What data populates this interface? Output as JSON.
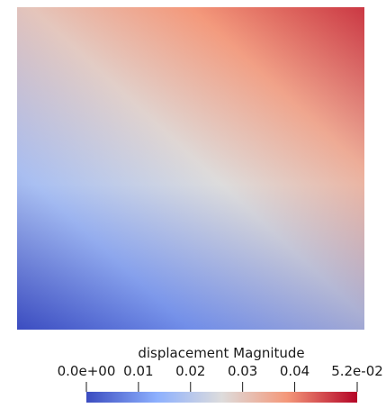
{
  "chart_data": {
    "type": "heatmap",
    "field": "displacement Magnitude",
    "range": [
      0.0,
      0.052
    ],
    "colormap": "Cool to Warm",
    "colormap_stops": [
      {
        "value": 0.0,
        "color": "#3b4cc0"
      },
      {
        "value": 0.26,
        "color": "#8db0fe"
      },
      {
        "value": 0.5,
        "color": "#dddcdc"
      },
      {
        "value": 0.74,
        "color": "#f4987a"
      },
      {
        "value": 1.0,
        "color": "#b40426"
      }
    ],
    "colorbar": {
      "title": "displacement Magnitude",
      "orientation": "horizontal",
      "ticks": [
        {
          "value": 0.0,
          "label": "0.0e+00"
        },
        {
          "value": 0.01,
          "label": "0.01"
        },
        {
          "value": 0.02,
          "label": "0.02"
        },
        {
          "value": 0.03,
          "label": "0.03"
        },
        {
          "value": 0.04,
          "label": "0.04"
        },
        {
          "value": 0.052,
          "label": "5.2e-02"
        }
      ]
    }
  }
}
